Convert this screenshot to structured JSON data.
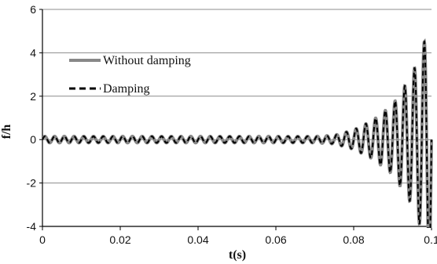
{
  "chart_data": {
    "type": "line",
    "title": "",
    "xlabel": "t(s)",
    "ylabel": "f/h",
    "xlim": [
      0,
      0.1
    ],
    "ylim": [
      -4,
      6
    ],
    "x_ticks": [
      0,
      0.02,
      0.04,
      0.06,
      0.08,
      0.1
    ],
    "x_tick_labels": [
      "0",
      "0.02",
      "0.04",
      "0.06",
      "0.08",
      "0.1"
    ],
    "y_ticks": [
      -4,
      -2,
      0,
      2,
      4,
      6
    ],
    "y_tick_labels": [
      "-4",
      "-2",
      "0",
      "2",
      "4",
      "6"
    ],
    "grid": "horizontal",
    "legend_position": "upper-left",
    "oscillation_period": 0.0025,
    "series": [
      {
        "name": "Without damping",
        "style": "solid",
        "color": "#888888",
        "envelope": [
          [
            0,
            0.15
          ],
          [
            0.01,
            0.15
          ],
          [
            0.02,
            0.15
          ],
          [
            0.03,
            0.15
          ],
          [
            0.04,
            0.15
          ],
          [
            0.05,
            0.15
          ],
          [
            0.06,
            0.15
          ],
          [
            0.07,
            0.15
          ],
          [
            0.075,
            0.2
          ],
          [
            0.08,
            0.45
          ],
          [
            0.085,
            0.9
          ],
          [
            0.09,
            1.6
          ],
          [
            0.095,
            3.0
          ],
          [
            0.098,
            4.4
          ],
          [
            0.1,
            6.0
          ]
        ]
      },
      {
        "name": "Damping",
        "style": "dashed",
        "color": "#000000",
        "envelope": [
          [
            0,
            0.15
          ],
          [
            0.01,
            0.15
          ],
          [
            0.02,
            0.15
          ],
          [
            0.03,
            0.15
          ],
          [
            0.04,
            0.15
          ],
          [
            0.05,
            0.15
          ],
          [
            0.06,
            0.15
          ],
          [
            0.07,
            0.15
          ],
          [
            0.075,
            0.2
          ],
          [
            0.08,
            0.45
          ],
          [
            0.085,
            0.9
          ],
          [
            0.09,
            1.6
          ],
          [
            0.095,
            3.0
          ],
          [
            0.098,
            4.4
          ],
          [
            0.1,
            6.0
          ]
        ]
      }
    ]
  }
}
